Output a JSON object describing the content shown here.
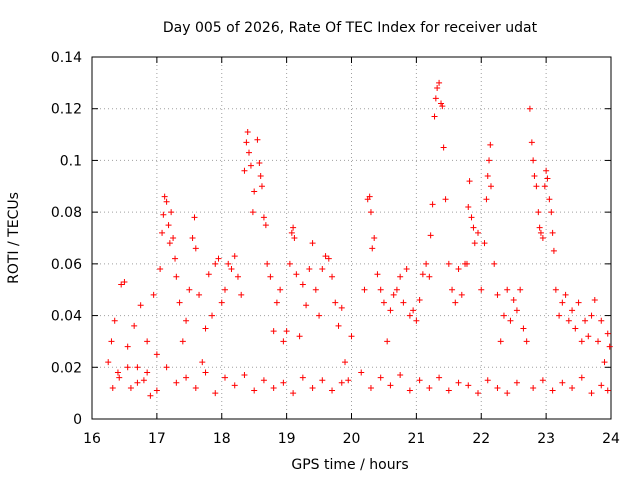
{
  "chart_data": {
    "type": "scatter",
    "title": "Day 005 of 2026, Rate Of TEC Index for receiver udat",
    "xlabel": "GPS time / hours",
    "ylabel": "ROTI / TECUs",
    "xlim": [
      16,
      24
    ],
    "ylim": [
      0,
      0.14
    ],
    "xticks": [
      16,
      17,
      18,
      19,
      20,
      21,
      22,
      23,
      24
    ],
    "xtick_labels": [
      "16",
      "17",
      "18",
      "19",
      "20",
      "21",
      "22",
      "23",
      "24"
    ],
    "yticks": [
      0,
      0.02,
      0.04,
      0.06,
      0.08,
      0.1,
      0.12,
      0.14
    ],
    "ytick_labels": [
      "0",
      "0.02",
      "0.04",
      "0.06",
      "0.08",
      "0.1",
      "0.12",
      "0.14"
    ],
    "grid": true,
    "marker": "+",
    "color": "#ff0000",
    "series": [
      {
        "name": "ROTI",
        "points": [
          [
            16.25,
            0.022
          ],
          [
            16.3,
            0.03
          ],
          [
            16.35,
            0.038
          ],
          [
            16.4,
            0.018
          ],
          [
            16.45,
            0.052
          ],
          [
            16.5,
            0.053
          ],
          [
            16.55,
            0.028
          ],
          [
            16.6,
            0.012
          ],
          [
            16.65,
            0.036
          ],
          [
            16.7,
            0.02
          ],
          [
            16.75,
            0.044
          ],
          [
            16.8,
            0.015
          ],
          [
            16.85,
            0.03
          ],
          [
            16.9,
            0.009
          ],
          [
            16.95,
            0.048
          ],
          [
            17.0,
            0.025
          ],
          [
            17.05,
            0.058
          ],
          [
            17.08,
            0.072
          ],
          [
            17.1,
            0.079
          ],
          [
            17.12,
            0.086
          ],
          [
            17.15,
            0.084
          ],
          [
            17.18,
            0.075
          ],
          [
            17.2,
            0.068
          ],
          [
            17.22,
            0.08
          ],
          [
            17.25,
            0.07
          ],
          [
            17.28,
            0.062
          ],
          [
            17.3,
            0.055
          ],
          [
            17.35,
            0.045
          ],
          [
            17.4,
            0.03
          ],
          [
            17.45,
            0.038
          ],
          [
            17.5,
            0.05
          ],
          [
            17.55,
            0.07
          ],
          [
            17.58,
            0.078
          ],
          [
            17.6,
            0.066
          ],
          [
            17.65,
            0.048
          ],
          [
            17.7,
            0.022
          ],
          [
            17.75,
            0.035
          ],
          [
            17.8,
            0.056
          ],
          [
            17.85,
            0.04
          ],
          [
            17.9,
            0.06
          ],
          [
            17.95,
            0.062
          ],
          [
            18.0,
            0.045
          ],
          [
            18.05,
            0.05
          ],
          [
            18.1,
            0.06
          ],
          [
            18.15,
            0.058
          ],
          [
            18.2,
            0.063
          ],
          [
            18.25,
            0.055
          ],
          [
            18.3,
            0.048
          ],
          [
            18.35,
            0.096
          ],
          [
            18.38,
            0.107
          ],
          [
            18.4,
            0.111
          ],
          [
            18.42,
            0.103
          ],
          [
            18.45,
            0.098
          ],
          [
            18.48,
            0.08
          ],
          [
            18.5,
            0.088
          ],
          [
            18.55,
            0.108
          ],
          [
            18.58,
            0.099
          ],
          [
            18.6,
            0.094
          ],
          [
            18.62,
            0.09
          ],
          [
            18.65,
            0.078
          ],
          [
            18.68,
            0.075
          ],
          [
            18.7,
            0.06
          ],
          [
            18.75,
            0.055
          ],
          [
            18.8,
            0.034
          ],
          [
            18.85,
            0.045
          ],
          [
            18.9,
            0.05
          ],
          [
            18.95,
            0.03
          ],
          [
            19.0,
            0.034
          ],
          [
            19.05,
            0.06
          ],
          [
            19.08,
            0.072
          ],
          [
            19.1,
            0.074
          ],
          [
            19.12,
            0.07
          ],
          [
            19.15,
            0.056
          ],
          [
            19.2,
            0.032
          ],
          [
            19.25,
            0.052
          ],
          [
            19.3,
            0.044
          ],
          [
            19.35,
            0.058
          ],
          [
            19.4,
            0.068
          ],
          [
            19.45,
            0.05
          ],
          [
            19.5,
            0.04
          ],
          [
            19.55,
            0.058
          ],
          [
            19.6,
            0.063
          ],
          [
            19.65,
            0.062
          ],
          [
            19.7,
            0.055
          ],
          [
            19.75,
            0.045
          ],
          [
            19.8,
            0.036
          ],
          [
            19.85,
            0.043
          ],
          [
            19.9,
            0.022
          ],
          [
            19.95,
            0.015
          ],
          [
            20.0,
            0.032
          ],
          [
            20.15,
            0.018
          ],
          [
            20.2,
            0.05
          ],
          [
            20.25,
            0.085
          ],
          [
            20.28,
            0.086
          ],
          [
            20.3,
            0.08
          ],
          [
            20.32,
            0.066
          ],
          [
            20.35,
            0.07
          ],
          [
            20.4,
            0.056
          ],
          [
            20.45,
            0.05
          ],
          [
            20.5,
            0.045
          ],
          [
            20.55,
            0.03
          ],
          [
            20.6,
            0.042
          ],
          [
            20.65,
            0.048
          ],
          [
            20.7,
            0.05
          ],
          [
            20.75,
            0.055
          ],
          [
            20.8,
            0.045
          ],
          [
            20.85,
            0.058
          ],
          [
            20.9,
            0.04
          ],
          [
            20.95,
            0.042
          ],
          [
            21.0,
            0.038
          ],
          [
            21.05,
            0.046
          ],
          [
            21.1,
            0.056
          ],
          [
            21.15,
            0.06
          ],
          [
            21.2,
            0.055
          ],
          [
            21.22,
            0.071
          ],
          [
            21.25,
            0.083
          ],
          [
            21.28,
            0.117
          ],
          [
            21.3,
            0.124
          ],
          [
            21.32,
            0.128
          ],
          [
            21.35,
            0.13
          ],
          [
            21.38,
            0.122
          ],
          [
            21.4,
            0.121
          ],
          [
            21.42,
            0.105
          ],
          [
            21.45,
            0.085
          ],
          [
            21.5,
            0.06
          ],
          [
            21.55,
            0.05
          ],
          [
            21.6,
            0.045
          ],
          [
            21.65,
            0.058
          ],
          [
            21.7,
            0.048
          ],
          [
            21.75,
            0.06
          ],
          [
            21.78,
            0.06
          ],
          [
            21.8,
            0.082
          ],
          [
            21.82,
            0.092
          ],
          [
            21.85,
            0.078
          ],
          [
            21.88,
            0.074
          ],
          [
            21.9,
            0.068
          ],
          [
            21.95,
            0.072
          ],
          [
            22.0,
            0.05
          ],
          [
            22.05,
            0.068
          ],
          [
            22.08,
            0.085
          ],
          [
            22.1,
            0.094
          ],
          [
            22.12,
            0.1
          ],
          [
            22.14,
            0.106
          ],
          [
            22.15,
            0.09
          ],
          [
            22.2,
            0.06
          ],
          [
            22.25,
            0.048
          ],
          [
            22.3,
            0.03
          ],
          [
            22.35,
            0.04
          ],
          [
            22.4,
            0.05
          ],
          [
            22.45,
            0.038
          ],
          [
            22.5,
            0.046
          ],
          [
            22.55,
            0.042
          ],
          [
            22.6,
            0.05
          ],
          [
            22.65,
            0.035
          ],
          [
            22.7,
            0.03
          ],
          [
            22.75,
            0.12
          ],
          [
            22.78,
            0.107
          ],
          [
            22.8,
            0.1
          ],
          [
            22.82,
            0.094
          ],
          [
            22.85,
            0.09
          ],
          [
            22.88,
            0.08
          ],
          [
            22.9,
            0.074
          ],
          [
            22.92,
            0.072
          ],
          [
            22.95,
            0.07
          ],
          [
            22.98,
            0.09
          ],
          [
            23.0,
            0.096
          ],
          [
            23.02,
            0.093
          ],
          [
            23.05,
            0.085
          ],
          [
            23.08,
            0.08
          ],
          [
            23.1,
            0.072
          ],
          [
            23.12,
            0.065
          ],
          [
            23.15,
            0.05
          ],
          [
            23.2,
            0.04
          ],
          [
            23.25,
            0.045
          ],
          [
            23.3,
            0.048
          ],
          [
            23.35,
            0.038
          ],
          [
            23.4,
            0.042
          ],
          [
            23.45,
            0.035
          ],
          [
            23.5,
            0.045
          ],
          [
            23.55,
            0.03
          ],
          [
            23.6,
            0.038
          ],
          [
            23.65,
            0.032
          ],
          [
            23.7,
            0.04
          ],
          [
            23.75,
            0.046
          ],
          [
            23.8,
            0.03
          ],
          [
            23.85,
            0.038
          ],
          [
            23.9,
            0.022
          ],
          [
            23.95,
            0.033
          ],
          [
            23.98,
            0.028
          ],
          [
            16.32,
            0.012
          ],
          [
            16.42,
            0.016
          ],
          [
            16.55,
            0.02
          ],
          [
            16.7,
            0.014
          ],
          [
            16.85,
            0.018
          ],
          [
            17.0,
            0.011
          ],
          [
            17.15,
            0.02
          ],
          [
            17.3,
            0.014
          ],
          [
            17.45,
            0.016
          ],
          [
            17.6,
            0.012
          ],
          [
            17.75,
            0.018
          ],
          [
            17.9,
            0.01
          ],
          [
            18.05,
            0.016
          ],
          [
            18.2,
            0.013
          ],
          [
            18.35,
            0.017
          ],
          [
            18.5,
            0.011
          ],
          [
            18.65,
            0.015
          ],
          [
            18.8,
            0.012
          ],
          [
            18.95,
            0.014
          ],
          [
            19.1,
            0.01
          ],
          [
            19.25,
            0.016
          ],
          [
            19.4,
            0.012
          ],
          [
            19.55,
            0.015
          ],
          [
            19.7,
            0.011
          ],
          [
            19.85,
            0.014
          ],
          [
            20.3,
            0.012
          ],
          [
            20.45,
            0.016
          ],
          [
            20.6,
            0.013
          ],
          [
            20.75,
            0.017
          ],
          [
            20.9,
            0.011
          ],
          [
            21.05,
            0.015
          ],
          [
            21.2,
            0.012
          ],
          [
            21.35,
            0.016
          ],
          [
            21.5,
            0.011
          ],
          [
            21.65,
            0.014
          ],
          [
            21.8,
            0.013
          ],
          [
            21.95,
            0.01
          ],
          [
            22.1,
            0.015
          ],
          [
            22.25,
            0.012
          ],
          [
            22.4,
            0.01
          ],
          [
            22.55,
            0.014
          ],
          [
            22.8,
            0.012
          ],
          [
            22.95,
            0.015
          ],
          [
            23.1,
            0.011
          ],
          [
            23.25,
            0.014
          ],
          [
            23.4,
            0.012
          ],
          [
            23.55,
            0.016
          ],
          [
            23.7,
            0.01
          ],
          [
            23.85,
            0.013
          ],
          [
            23.95,
            0.011
          ]
        ]
      }
    ]
  }
}
